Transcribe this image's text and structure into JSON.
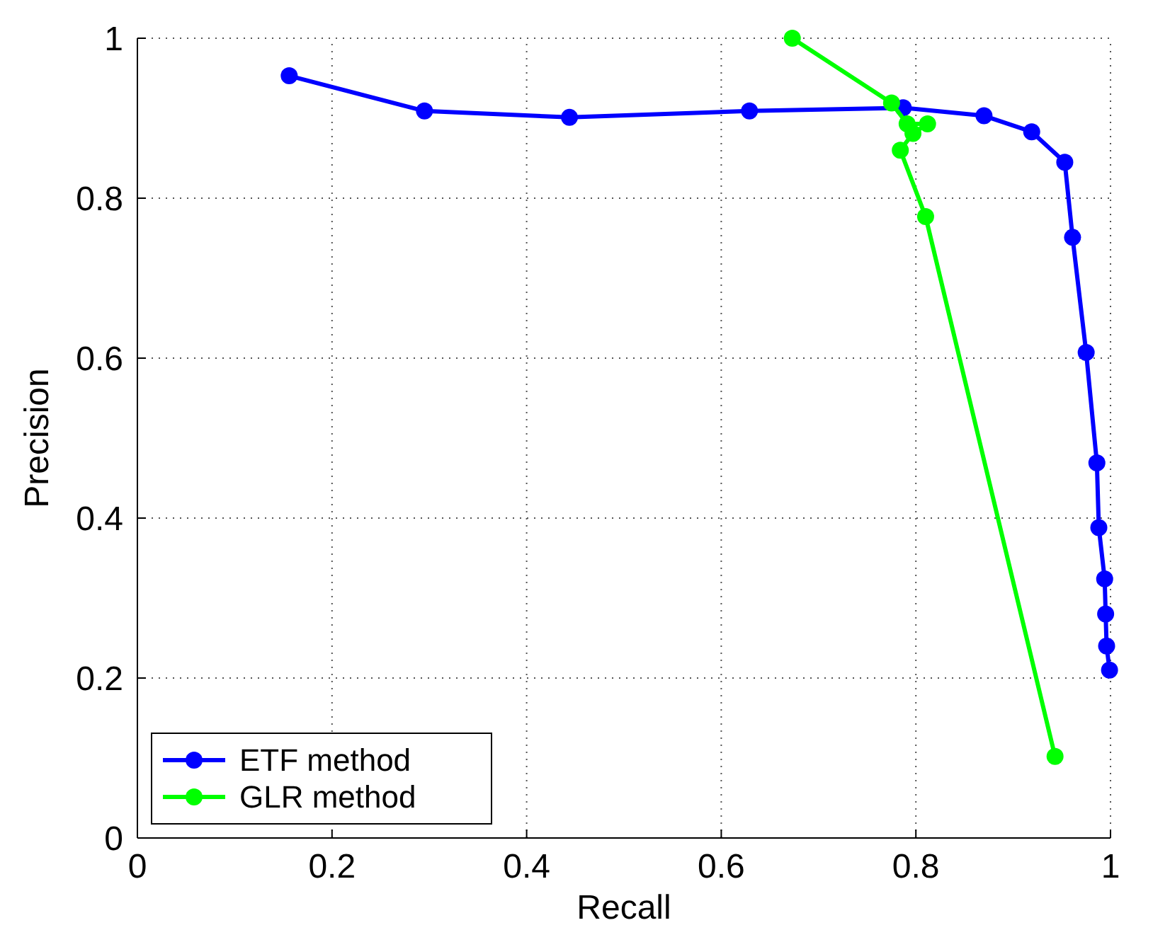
{
  "chart_data": {
    "type": "line",
    "xlabel": "Recall",
    "ylabel": "Precision",
    "xlim": [
      0,
      1
    ],
    "ylim": [
      0,
      1
    ],
    "xticks": [
      0,
      0.2,
      0.4,
      0.6,
      0.8,
      1
    ],
    "yticks": [
      0,
      0.2,
      0.4,
      0.6,
      0.8,
      1
    ],
    "grid": true,
    "legend": "bottom left",
    "marker": "circle",
    "line_style": "solid",
    "series": [
      {
        "name": "ETF method",
        "color": "#0000ff",
        "x": [
          0.156,
          0.295,
          0.444,
          0.629,
          0.787,
          0.87,
          0.919,
          0.953,
          0.961,
          0.975,
          0.986,
          0.988,
          0.994,
          0.995,
          0.996,
          0.999
        ],
        "values": [
          0.953,
          0.909,
          0.901,
          0.909,
          0.913,
          0.903,
          0.883,
          0.845,
          0.751,
          0.607,
          0.469,
          0.388,
          0.324,
          0.28,
          0.24,
          0.21
        ]
      },
      {
        "name": "GLR method",
        "color": "#00ff00",
        "x": [
          0.673,
          0.775,
          0.791,
          0.812,
          0.797,
          0.784,
          0.81,
          0.943
        ],
        "values": [
          1.0,
          0.919,
          0.893,
          0.893,
          0.881,
          0.86,
          0.777,
          0.102
        ]
      }
    ]
  }
}
